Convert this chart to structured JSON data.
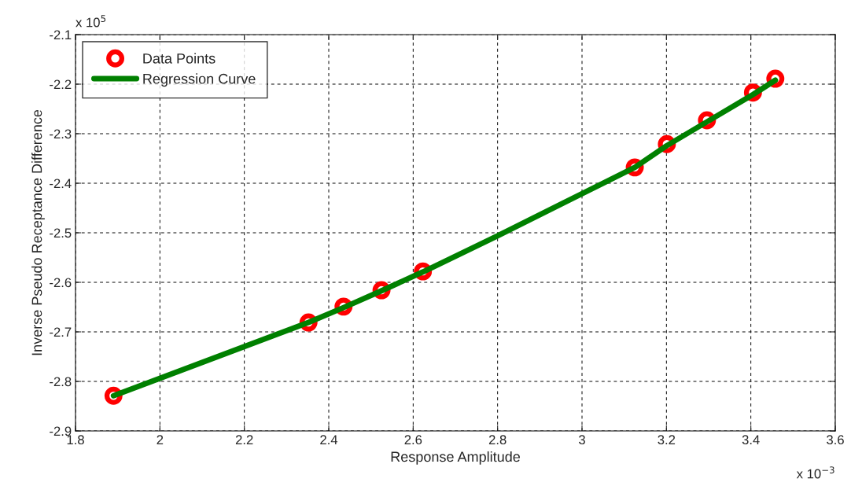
{
  "chart_data": {
    "type": "line",
    "xlabel": "Response Amplitude",
    "ylabel": "Inverse Pseudo Receptance Difference",
    "annotations": [
      "x 10$^{5}$",
      "x 10$^{−3}$"
    ],
    "xlim": [
      1.8,
      3.6
    ],
    "xticks": [
      1.8,
      2,
      2.2,
      2.4,
      2.6,
      2.8,
      3,
      3.2,
      3.4,
      3.6
    ],
    "ylim": [
      -2.9,
      -2.1
    ],
    "yticks": [
      -2.9,
      -2.8,
      -2.7,
      -2.6,
      -2.5,
      -2.4,
      -2.3,
      -2.2,
      -2.1
    ],
    "grid": true,
    "legend": "top left",
    "series": [
      {
        "name": "Data Points",
        "type": "scatter",
        "marker": "circle",
        "color": "#ff0000",
        "x": [
          1.89,
          2.352,
          2.435,
          2.525,
          2.623,
          3.125,
          3.201,
          3.296,
          3.405,
          3.458
        ],
        "values": [
          -2.829,
          -2.681,
          -2.649,
          -2.616,
          -2.578,
          -2.368,
          -2.321,
          -2.273,
          -2.217,
          -2.189
        ]
      },
      {
        "name": "Regression Curve",
        "type": "line",
        "color": "#008000",
        "line_style": "solid",
        "x": [
          1.89,
          2.352,
          2.435,
          2.525,
          2.623,
          2.8,
          3.125,
          3.201,
          3.296,
          3.405,
          3.458
        ],
        "values": [
          -2.829,
          -2.681,
          -2.651,
          -2.617,
          -2.579,
          -2.506,
          -2.368,
          -2.324,
          -2.276,
          -2.221,
          -2.192
        ]
      }
    ]
  }
}
